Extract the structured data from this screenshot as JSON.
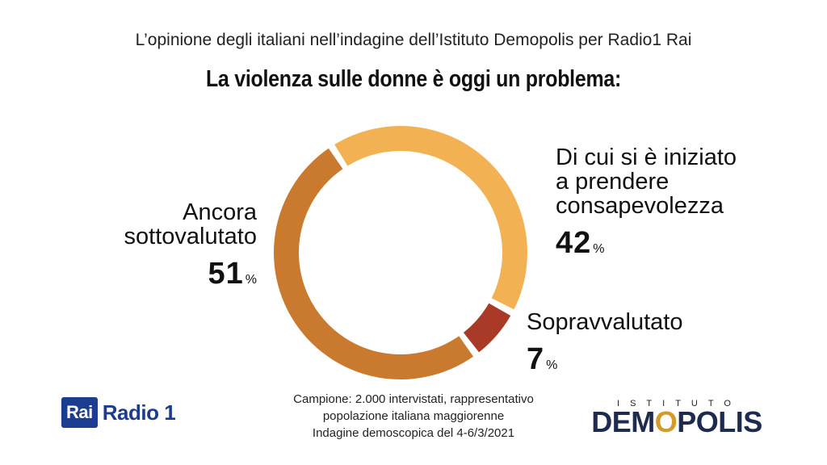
{
  "header": {
    "subtitle": "L’opinione degli italiani nell’indagine dell’Istituto Demopolis per Radio1 Rai",
    "title": "La violenza sulle donne è oggi un problema:"
  },
  "chart_data": {
    "type": "pie",
    "donut": true,
    "title": "La violenza sulle donne è oggi un problema:",
    "categories": [
      "Ancora sottovalutato",
      "Di cui si è iniziato a prendere consapevolezza",
      "Sopravvalutato"
    ],
    "values": [
      51,
      42,
      7
    ],
    "unit": "%",
    "colors": [
      "#c97a2e",
      "#f2b254",
      "#a93a28"
    ]
  },
  "labels": [
    {
      "text": "Ancora\nsottovalutato",
      "value": "51",
      "unit": "%"
    },
    {
      "text": "Di cui si è iniziato\na prendere\nconsapevolezza",
      "value": "42",
      "unit": "%"
    },
    {
      "text": "Sopravvalutato",
      "value": "7",
      "unit": "%"
    }
  ],
  "footer": {
    "note_line1": "Campione: 2.000 intervistati, rappresentativo",
    "note_line2": "popolazione italiana maggiorenne",
    "note_line3": "Indagine demoscopica del 4-6/3/2021",
    "rai_logo": "Rai",
    "radio_logo": "Radio 1",
    "demo_logo_top": "ISTITUTO",
    "demo_logo_main_a": "DEM",
    "demo_logo_main_o": "O",
    "demo_logo_main_b": "POLIS"
  }
}
